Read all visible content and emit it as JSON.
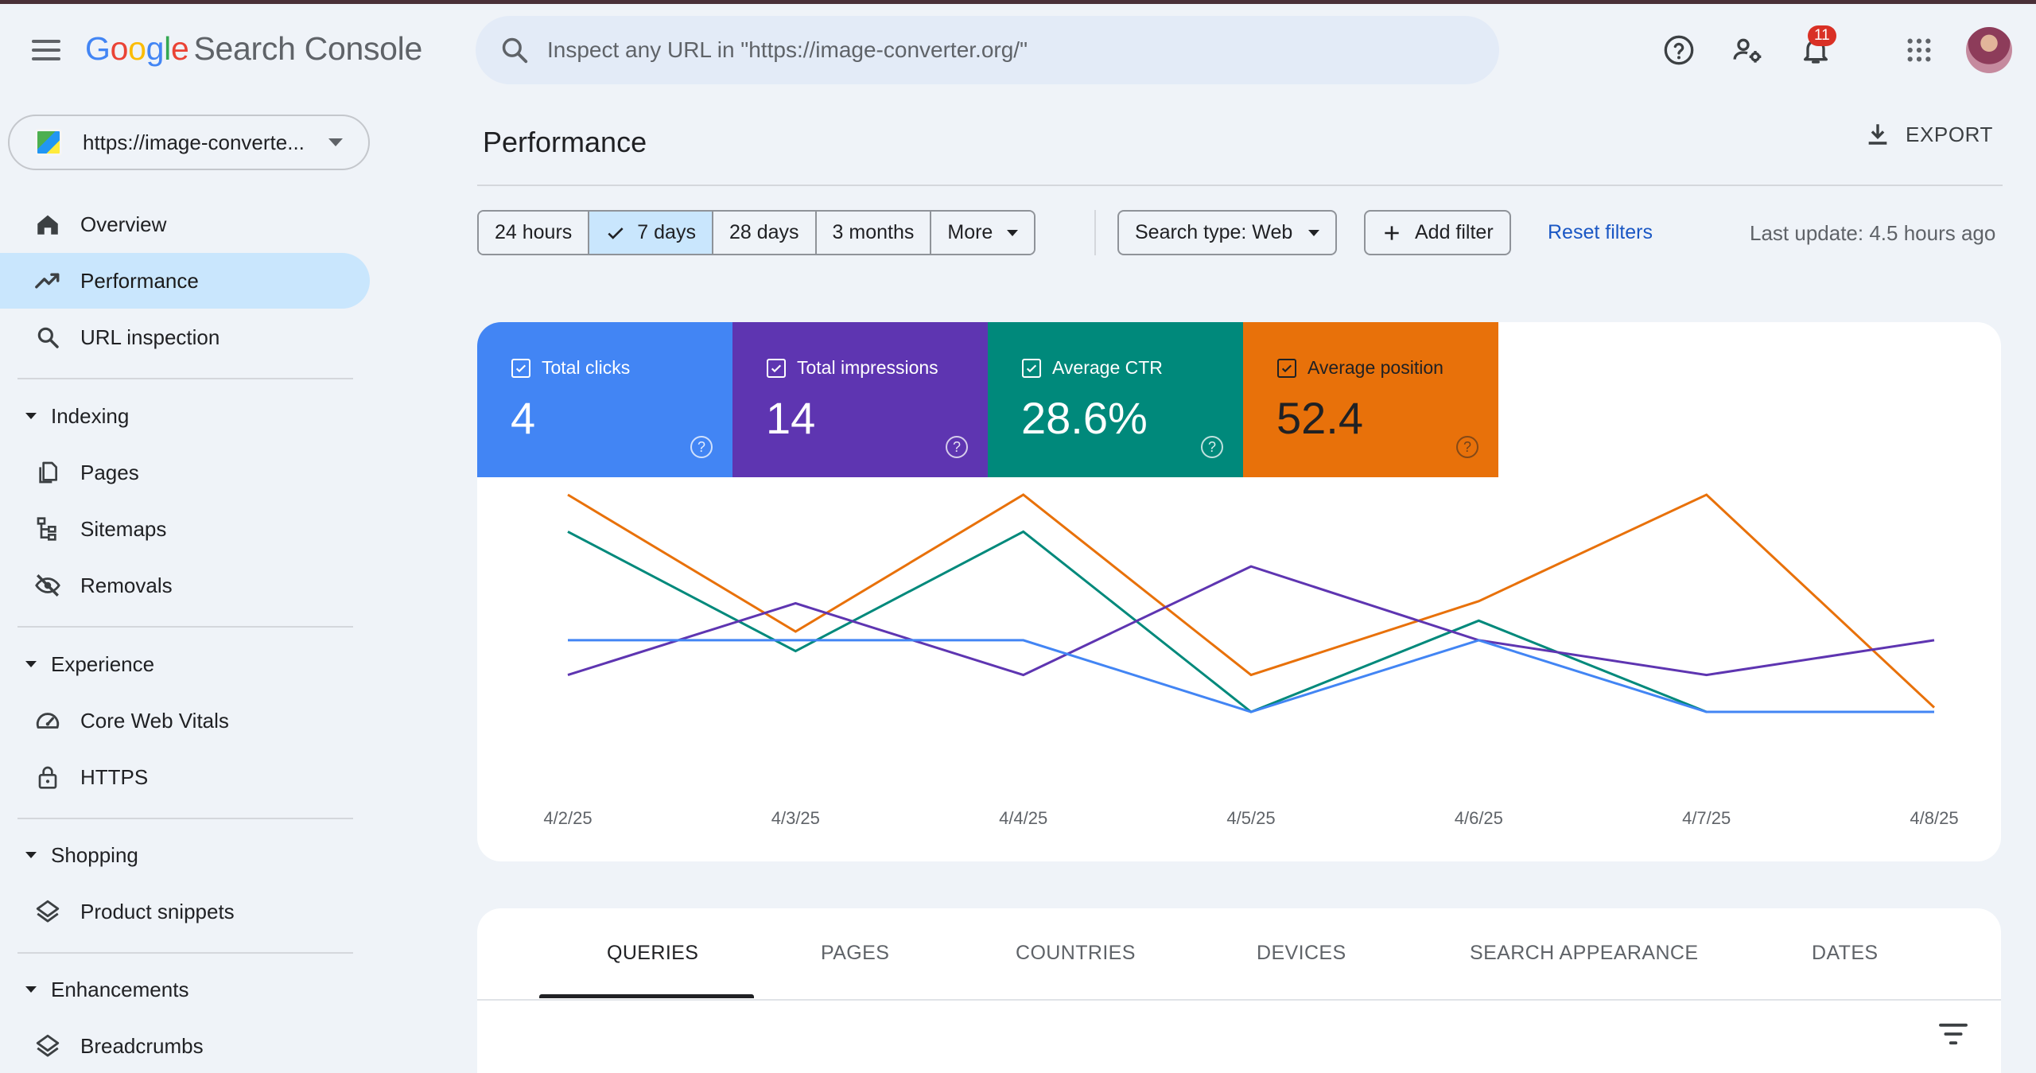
{
  "header": {
    "logo": {
      "G": "G",
      "o1": "o",
      "o2": "o",
      "g": "g",
      "l": "l",
      "e": "e",
      "product": "Search Console"
    },
    "search_placeholder": "Inspect any URL in \"https://image-converter.org/\"",
    "notifications_count": "11"
  },
  "sidebar": {
    "property": "https://image-converte...",
    "items": [
      {
        "label": "Overview",
        "icon": "home-icon"
      },
      {
        "label": "Performance",
        "icon": "trending-up-icon",
        "active": true
      },
      {
        "label": "URL inspection",
        "icon": "search-icon"
      }
    ],
    "sections": [
      {
        "title": "Indexing",
        "items": [
          {
            "label": "Pages",
            "icon": "pages-icon"
          },
          {
            "label": "Sitemaps",
            "icon": "sitemap-icon"
          },
          {
            "label": "Removals",
            "icon": "eye-off-icon"
          }
        ]
      },
      {
        "title": "Experience",
        "items": [
          {
            "label": "Core Web Vitals",
            "icon": "gauge-icon"
          },
          {
            "label": "HTTPS",
            "icon": "lock-icon"
          }
        ]
      },
      {
        "title": "Shopping",
        "items": [
          {
            "label": "Product snippets",
            "icon": "layers-icon"
          }
        ]
      },
      {
        "title": "Enhancements",
        "items": [
          {
            "label": "Breadcrumbs",
            "icon": "layers-icon"
          }
        ]
      }
    ]
  },
  "main": {
    "title": "Performance",
    "export_label": "EXPORT",
    "date_ranges": [
      "24 hours",
      "7 days",
      "28 days",
      "3 months",
      "More"
    ],
    "selected_range": "7 days",
    "search_type": "Search type: Web",
    "add_filter": "Add filter",
    "reset_filters": "Reset filters",
    "last_update": "Last update: 4.5 hours ago"
  },
  "metrics": [
    {
      "label": "Total clicks",
      "value": "4",
      "color": "#4285f4"
    },
    {
      "label": "Total impressions",
      "value": "14",
      "color": "#5e35b1"
    },
    {
      "label": "Average CTR",
      "value": "28.6%",
      "color": "#00897b"
    },
    {
      "label": "Average position",
      "value": "52.4",
      "color": "#e8710a"
    }
  ],
  "chart_data": {
    "type": "line",
    "x": [
      "4/2/25",
      "4/3/25",
      "4/4/25",
      "4/5/25",
      "4/6/25",
      "4/7/25",
      "4/8/25"
    ],
    "normalized": true,
    "ylim": [
      0,
      1
    ],
    "series": [
      {
        "name": "Total clicks",
        "color": "#4285f4",
        "values": [
          0.33,
          0.33,
          0.33,
          0.0,
          0.33,
          0.0,
          0.0
        ]
      },
      {
        "name": "Total impressions",
        "color": "#5e35b1",
        "values": [
          0.17,
          0.5,
          0.17,
          0.67,
          0.33,
          0.17,
          0.33
        ]
      },
      {
        "name": "Average CTR",
        "color": "#00897b",
        "values": [
          0.83,
          0.28,
          0.83,
          0.0,
          0.42,
          0.0,
          0.0
        ]
      },
      {
        "name": "Average position",
        "color": "#e8710a",
        "values": [
          1.0,
          0.37,
          1.0,
          0.17,
          0.51,
          1.0,
          0.02
        ]
      }
    ]
  },
  "tabs": [
    "QUERIES",
    "PAGES",
    "COUNTRIES",
    "DEVICES",
    "SEARCH APPEARANCE",
    "DATES"
  ],
  "active_tab": "QUERIES"
}
